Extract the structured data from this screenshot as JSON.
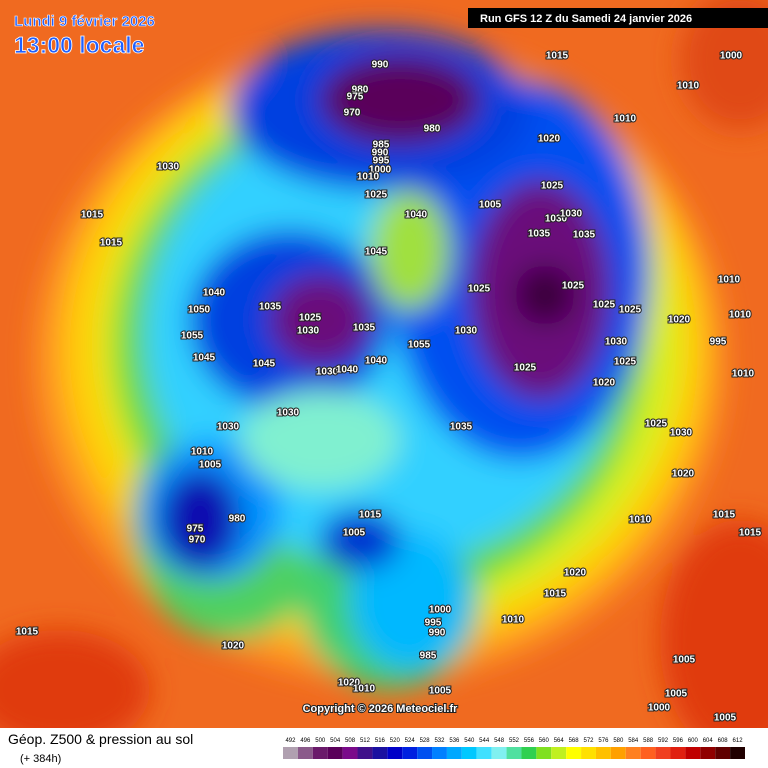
{
  "header": {
    "date": "Lundi 9 février 2026",
    "time": "13:00 locale",
    "run": "Run GFS 12 Z du Samedi 24 janvier 2026"
  },
  "footer": {
    "title": "Géop. Z500 & pression au sol",
    "lead": "(+ 384h)",
    "copyright": "Copyright © 2026 Meteociel.fr"
  },
  "legend": {
    "values": [
      492,
      496,
      500,
      504,
      508,
      512,
      516,
      520,
      524,
      528,
      532,
      536,
      540,
      544,
      548,
      552,
      556,
      560,
      564,
      568,
      572,
      576,
      580,
      584,
      588,
      592,
      596,
      600,
      604,
      608,
      612
    ],
    "colors": [
      "#b0a0b0",
      "#8a5a8a",
      "#6a1a6a",
      "#5a005a",
      "#7a0a8a",
      "#40108a",
      "#1a10a0",
      "#0000c8",
      "#0020e0",
      "#0050f0",
      "#0080ff",
      "#00a8ff",
      "#00c8ff",
      "#40e0ff",
      "#80f0f0",
      "#50e0a0",
      "#30d050",
      "#80e020",
      "#c0f020",
      "#ffff00",
      "#ffe000",
      "#ffc000",
      "#ffa000",
      "#ff8020",
      "#ff6020",
      "#f04020",
      "#e02010",
      "#c00000",
      "#900000",
      "#600000",
      "#200000"
    ]
  },
  "pressure_labels": [
    990,
    980,
    975,
    970,
    980,
    985,
    990,
    995,
    1000,
    1010,
    1025,
    1030,
    1015,
    1015,
    1040,
    1045,
    1005,
    1020,
    1025,
    1030,
    1030,
    1035,
    1035,
    1015,
    1010,
    1000,
    1010,
    1025,
    1025,
    1025,
    1025,
    1020,
    1010,
    1010,
    995,
    1010,
    1030,
    1025,
    1020,
    1025,
    1030,
    1035,
    1025,
    1030,
    1020,
    1010,
    1015,
    1015,
    1020,
    1015,
    1010,
    1005,
    1005,
    1000,
    1005,
    1040,
    1050,
    1055,
    1045,
    1035,
    1025,
    1030,
    1035,
    1040,
    1055,
    1045,
    1030,
    1040,
    1030,
    1030,
    1010,
    1005,
    980,
    975,
    970,
    1015,
    1005,
    1000,
    995,
    990,
    985,
    1015,
    1020,
    1020,
    1010,
    1005
  ]
}
